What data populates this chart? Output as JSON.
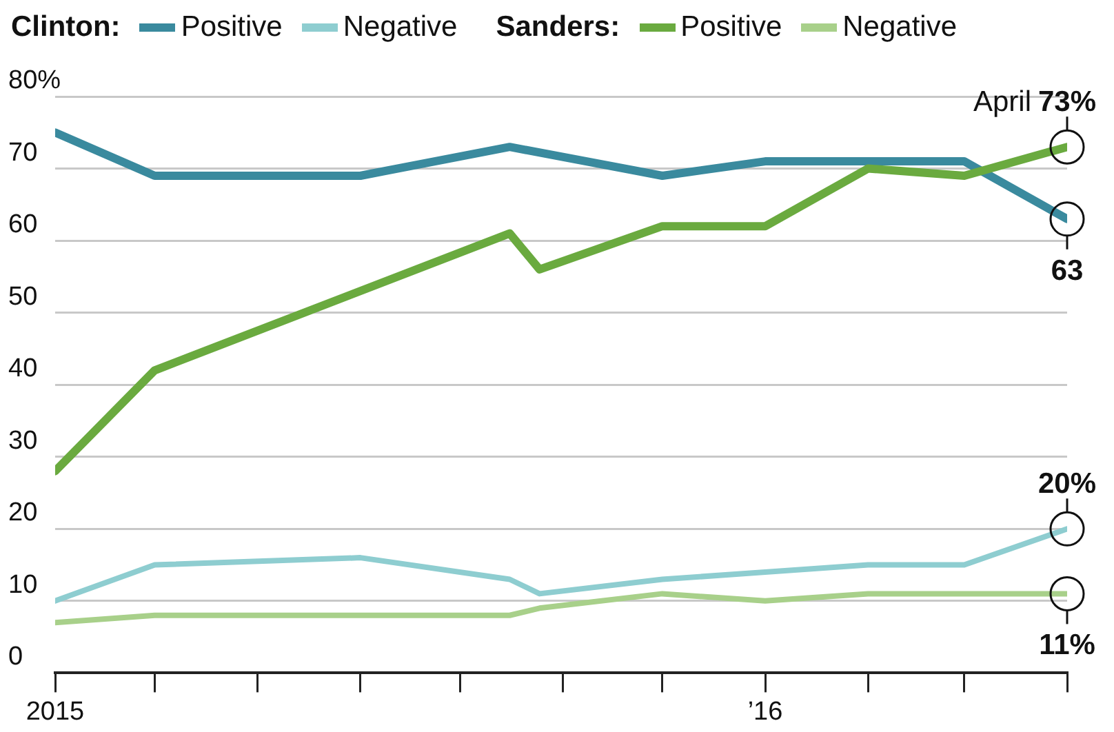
{
  "chart_data": {
    "type": "line",
    "x": [
      "2015-06",
      "2015-07",
      "2015-09",
      "2015-10-16",
      "2015-12",
      "2016-01",
      "2016-03",
      "2016-04"
    ],
    "xlim": [
      "2015-06",
      "2016-04"
    ],
    "xticks": [
      {
        "value": "2015-06",
        "label": "2015"
      },
      {
        "value": "2015-07",
        "label": null
      },
      {
        "value": "2015-08",
        "label": null
      },
      {
        "value": "2015-09",
        "label": null
      },
      {
        "value": "2015-10",
        "label": null
      },
      {
        "value": "2015-11",
        "label": null
      },
      {
        "value": "2015-12",
        "label": null
      },
      {
        "value": "2016-01",
        "label": "’16"
      },
      {
        "value": "2016-02",
        "label": null
      },
      {
        "value": "2016-03",
        "label": null
      },
      {
        "value": "2016-04",
        "label": null
      }
    ],
    "ylim": [
      0,
      80
    ],
    "yticks": [
      0,
      10,
      20,
      30,
      40,
      50,
      60,
      70,
      {
        "value": 80,
        "label": "80%"
      }
    ],
    "grid": "y",
    "legend": "top left",
    "annotations": [
      "Clinton:",
      "Sanders:",
      {
        "text": "April",
        "x": "2016-04",
        "y": 73
      }
    ],
    "series": [
      {
        "name": "Positive",
        "color": "#3a8a9e",
        "values": [
          75,
          69,
          69,
          73,
          69,
          71,
          71,
          63
        ],
        "value_labels": [
          null,
          null,
          null,
          null,
          null,
          null,
          null,
          "63"
        ]
      },
      {
        "name": "Negative",
        "color": "#8ecdd0",
        "x": [
          "2015-06",
          "2015-07",
          "2015-09",
          "2015-10-16",
          "2015-10-25",
          "2015-12",
          "2016-01",
          "2016-02",
          "2016-03",
          "2016-04"
        ],
        "values": [
          10,
          15,
          16,
          13,
          11,
          13,
          14,
          15,
          15,
          20
        ],
        "value_labels": [
          null,
          null,
          null,
          null,
          null,
          null,
          null,
          null,
          null,
          "20%"
        ]
      },
      {
        "name": "Positive",
        "color": "#6aaa3f",
        "x": [
          "2015-06",
          "2015-07",
          "2015-10-16",
          "2015-10-25",
          "2015-12",
          "2016-01",
          "2016-02",
          "2016-03",
          "2016-04"
        ],
        "values": [
          28,
          42,
          61,
          56,
          62,
          62,
          70,
          69,
          73
        ],
        "value_labels": [
          null,
          null,
          null,
          null,
          null,
          null,
          null,
          null,
          "73%"
        ]
      },
      {
        "name": "Negative",
        "color": "#a8d08a",
        "x": [
          "2015-06",
          "2015-07",
          "2015-10-16",
          "2015-10-25",
          "2015-12",
          "2016-01",
          "2016-02",
          "2016-04"
        ],
        "values": [
          7,
          8,
          8,
          9,
          11,
          10,
          11,
          11
        ],
        "value_labels": [
          null,
          null,
          null,
          null,
          null,
          null,
          null,
          "11%"
        ]
      }
    ]
  }
}
